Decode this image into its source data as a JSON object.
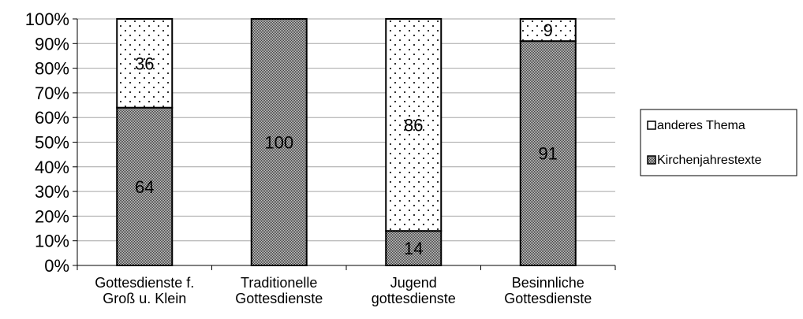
{
  "chart_data": {
    "type": "bar",
    "stacked": true,
    "percent": true,
    "categories": [
      [
        "Gottesdienste f.",
        "Groß u. Klein"
      ],
      [
        "Traditionelle",
        "Gottesdienste"
      ],
      [
        "Jugend",
        "gottesdienste"
      ],
      [
        "Besinnliche",
        "Gottesdienste"
      ]
    ],
    "series": [
      {
        "name": "Kirchenjahrestexte",
        "values": [
          64,
          100,
          14,
          91
        ],
        "pattern": "crosshatch"
      },
      {
        "name": "anderes Thema",
        "values": [
          36,
          0,
          86,
          9
        ],
        "pattern": "dots"
      }
    ],
    "ylim": [
      0,
      100
    ],
    "yticks": [
      "0%",
      "10%",
      "20%",
      "30%",
      "40%",
      "50%",
      "60%",
      "70%",
      "80%",
      "90%",
      "100%"
    ],
    "grid": true,
    "legend": "right",
    "legend_order": [
      "anderes Thema",
      "Kirchenjahrestexte"
    ]
  }
}
